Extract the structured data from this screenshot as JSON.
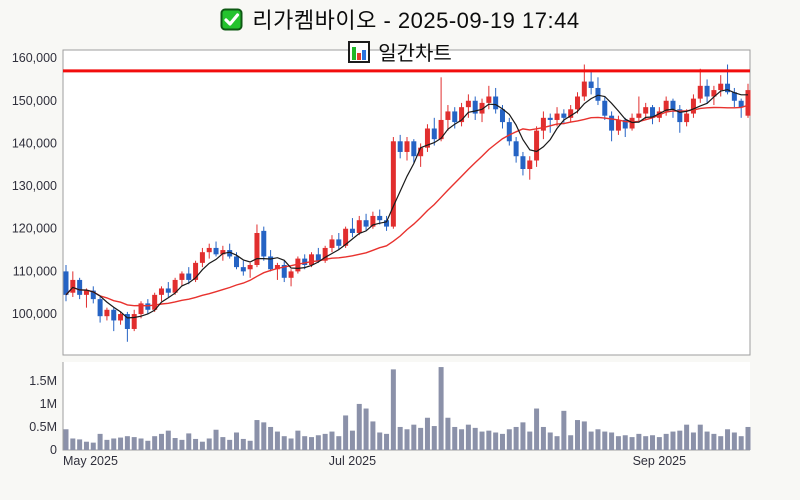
{
  "header": {
    "title": "리가켐바이오 - 2025-09-19 17:44",
    "subtitle": "일간차트",
    "checkbox_icon": "green-checkbox",
    "chart_type_icon": "bar-chart"
  },
  "colors": {
    "page_bg": "#f8f8f5",
    "plot_bg": "#ffffff",
    "plot_border": "#9e9e9e",
    "up": "#e12e2e",
    "down": "#2563c4",
    "ma_fast": "#1a1a1a",
    "ma_slow": "#e8322e",
    "resistance": "#f20d0d",
    "volume_bar": "#8b91a9",
    "tick_label": "#30303c",
    "icon_green": "#21b82a",
    "icon_red": "#e23a2e",
    "icon_blue": "#2b72dd",
    "icon_border": "#1c1c1c",
    "checkbox_green": "#24c32e",
    "checkbox_border": "#0e5a14"
  },
  "chart_data": {
    "type": "candlestick+volume",
    "title": "리가켐바이오 - 2025-09-19 17:44",
    "subtitle": "일간차트",
    "resistance_level": 157000,
    "ma_fast_window": 5,
    "ma_slow_window": 20,
    "price_axis": {
      "ylim": [
        90400,
        161900
      ],
      "ticks": [
        100000,
        110000,
        120000,
        130000,
        140000,
        150000,
        160000
      ],
      "tick_labels": [
        "100,000",
        "110,000",
        "120,000",
        "130,000",
        "140,000",
        "150,000",
        "160,000"
      ]
    },
    "volume_axis": {
      "ylim": [
        0,
        1910000
      ],
      "ticks": [
        0,
        500000,
        1000000,
        1500000
      ],
      "tick_labels": [
        "0",
        "0.5M",
        "1M",
        "1.5M"
      ]
    },
    "x_axis": {
      "tick_labels": [
        "May 2025",
        "Jul 2025",
        "Sep 2025"
      ],
      "tick_days": [
        0,
        42,
        87
      ]
    },
    "candles_format": [
      "open",
      "high",
      "low",
      "close",
      "volume_thousands"
    ],
    "candles": [
      [
        110000,
        111500,
        103000,
        104500,
        450
      ],
      [
        105000,
        110000,
        104000,
        108000,
        250
      ],
      [
        108000,
        108500,
        103500,
        104500,
        230
      ],
      [
        104500,
        106000,
        101500,
        105500,
        180
      ],
      [
        105500,
        106500,
        102500,
        103500,
        160
      ],
      [
        103500,
        104000,
        98000,
        99500,
        350
      ],
      [
        99500,
        101500,
        98500,
        101000,
        220
      ],
      [
        101000,
        101500,
        96000,
        98500,
        250
      ],
      [
        98500,
        100500,
        97500,
        100000,
        270
      ],
      [
        100000,
        100500,
        93500,
        96500,
        300
      ],
      [
        96500,
        101000,
        96000,
        100000,
        280
      ],
      [
        100000,
        103000,
        99000,
        102500,
        250
      ],
      [
        102500,
        103500,
        100000,
        101000,
        200
      ],
      [
        101000,
        105000,
        100500,
        104500,
        300
      ],
      [
        104500,
        106500,
        103000,
        106000,
        350
      ],
      [
        106000,
        107500,
        104000,
        105000,
        420
      ],
      [
        105000,
        108500,
        104500,
        108000,
        260
      ],
      [
        108000,
        110000,
        106500,
        109500,
        220
      ],
      [
        109500,
        111000,
        107000,
        108000,
        360
      ],
      [
        108000,
        112500,
        107500,
        112000,
        240
      ],
      [
        112000,
        115500,
        111000,
        114500,
        180
      ],
      [
        114500,
        116500,
        113000,
        115500,
        250
      ],
      [
        115500,
        117000,
        113500,
        114000,
        440
      ],
      [
        114000,
        116000,
        112500,
        115000,
        280
      ],
      [
        115000,
        116500,
        113000,
        113500,
        220
      ],
      [
        113500,
        114500,
        110500,
        111000,
        380
      ],
      [
        111000,
        112500,
        109000,
        110000,
        240
      ],
      [
        110500,
        112000,
        108500,
        111500,
        200
      ],
      [
        111500,
        121000,
        111000,
        119000,
        650
      ],
      [
        119500,
        120500,
        112500,
        113500,
        600
      ],
      [
        113500,
        115000,
        110000,
        110500,
        500
      ],
      [
        110500,
        112000,
        108000,
        111500,
        400
      ],
      [
        111500,
        112500,
        107500,
        108500,
        300
      ],
      [
        108500,
        110500,
        106500,
        110000,
        250
      ],
      [
        110000,
        113500,
        109500,
        113000,
        420
      ],
      [
        113000,
        114000,
        110500,
        111500,
        300
      ],
      [
        111500,
        114500,
        111000,
        114000,
        280
      ],
      [
        114000,
        115500,
        112000,
        112500,
        320
      ],
      [
        112500,
        116000,
        112000,
        115500,
        350
      ],
      [
        115500,
        118500,
        114500,
        117500,
        400
      ],
      [
        117500,
        119000,
        115000,
        116000,
        300
      ],
      [
        116000,
        120500,
        115500,
        120000,
        750
      ],
      [
        120000,
        122500,
        118000,
        119000,
        420
      ],
      [
        119000,
        123000,
        118500,
        122000,
        1000
      ],
      [
        122000,
        123500,
        119500,
        120500,
        900
      ],
      [
        120500,
        124000,
        120000,
        123000,
        620
      ],
      [
        123000,
        124500,
        121000,
        122000,
        380
      ],
      [
        122000,
        123000,
        119500,
        120500,
        350
      ],
      [
        120500,
        141500,
        120000,
        140500,
        1750
      ],
      [
        140500,
        142000,
        136500,
        138000,
        500
      ],
      [
        138000,
        141500,
        136000,
        140500,
        450
      ],
      [
        140500,
        141000,
        135500,
        137000,
        550
      ],
      [
        137000,
        140000,
        134500,
        139000,
        480
      ],
      [
        139000,
        144500,
        138000,
        143500,
        700
      ],
      [
        143500,
        146000,
        139500,
        141000,
        520
      ],
      [
        141000,
        155500,
        140500,
        145500,
        1800
      ],
      [
        145500,
        149000,
        143000,
        147500,
        700
      ],
      [
        147500,
        148500,
        143500,
        145000,
        500
      ],
      [
        145000,
        149500,
        144000,
        148500,
        450
      ],
      [
        148500,
        151500,
        146000,
        150000,
        550
      ],
      [
        150000,
        151000,
        145500,
        147000,
        480
      ],
      [
        147000,
        150500,
        145000,
        149500,
        400
      ],
      [
        149500,
        153500,
        148000,
        151000,
        420
      ],
      [
        151000,
        153000,
        147000,
        148000,
        380
      ],
      [
        148000,
        149000,
        143500,
        145000,
        350
      ],
      [
        145000,
        146000,
        139500,
        140500,
        450
      ],
      [
        140500,
        141500,
        135500,
        137000,
        500
      ],
      [
        137000,
        138000,
        132500,
        134000,
        600
      ],
      [
        134000,
        137000,
        131500,
        136000,
        400
      ],
      [
        136000,
        144000,
        134500,
        143000,
        900
      ],
      [
        143000,
        147500,
        141000,
        146000,
        500
      ],
      [
        146000,
        147000,
        142500,
        145500,
        380
      ],
      [
        145500,
        148500,
        144000,
        147000,
        300
      ],
      [
        147000,
        148000,
        144500,
        146000,
        850
      ],
      [
        146000,
        149000,
        145000,
        148000,
        320
      ],
      [
        148000,
        152000,
        147000,
        151000,
        650
      ],
      [
        151000,
        158500,
        150000,
        154500,
        620
      ],
      [
        154500,
        157200,
        151500,
        153000,
        400
      ],
      [
        153000,
        155500,
        149000,
        150000,
        450
      ],
      [
        150000,
        151000,
        145500,
        146500,
        400
      ],
      [
        146500,
        147500,
        140500,
        143000,
        380
      ],
      [
        143000,
        146500,
        142000,
        145500,
        300
      ],
      [
        145500,
        146000,
        141500,
        143500,
        320
      ],
      [
        143500,
        147000,
        143000,
        146000,
        280
      ],
      [
        146000,
        151000,
        145000,
        147000,
        350
      ],
      [
        147000,
        149500,
        145500,
        148500,
        300
      ],
      [
        148500,
        149000,
        144500,
        146000,
        320
      ],
      [
        146000,
        148500,
        145000,
        147500,
        280
      ],
      [
        147500,
        151000,
        146500,
        150000,
        350
      ],
      [
        150000,
        150500,
        146000,
        148000,
        400
      ],
      [
        148000,
        149000,
        142500,
        145000,
        420
      ],
      [
        145000,
        148000,
        144000,
        147000,
        550
      ],
      [
        147000,
        151500,
        146000,
        150500,
        380
      ],
      [
        150500,
        157500,
        149500,
        153500,
        550
      ],
      [
        153500,
        155000,
        149500,
        151000,
        400
      ],
      [
        151000,
        153500,
        149000,
        152500,
        350
      ],
      [
        152500,
        156000,
        151000,
        154000,
        300
      ],
      [
        154000,
        158500,
        151500,
        152000,
        450
      ],
      [
        152000,
        153000,
        148500,
        150000,
        380
      ],
      [
        150000,
        150500,
        146000,
        148500,
        300
      ],
      [
        146500,
        154000,
        146000,
        152500,
        500
      ]
    ]
  }
}
